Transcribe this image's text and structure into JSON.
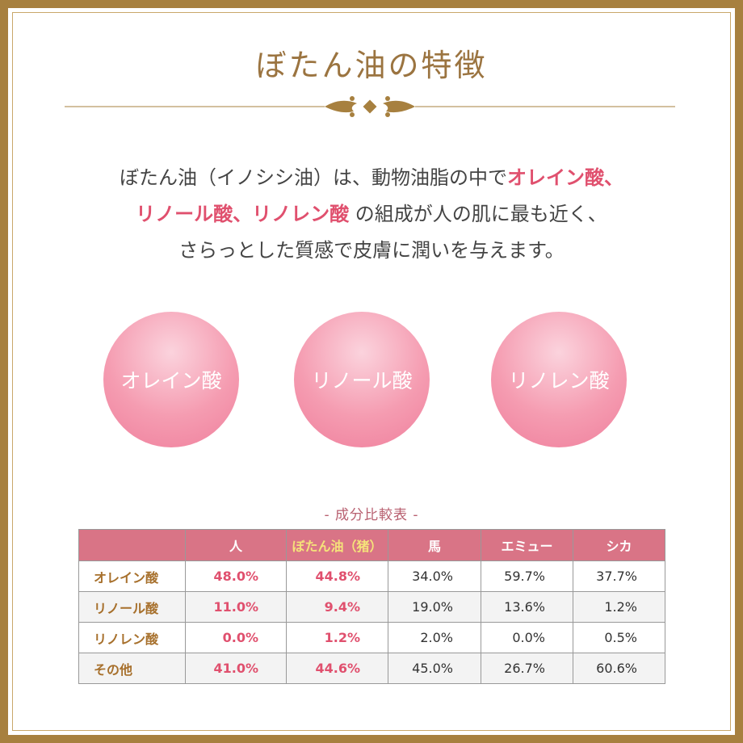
{
  "title": "ぼたん油の特徴",
  "intro": {
    "lines": [
      [
        {
          "text": "ぼたん油（イノシシ油）は、動物油脂の中で",
          "color": "#444444"
        },
        {
          "text": "オレイン酸、",
          "color": "#e0506e"
        }
      ],
      [
        {
          "text": "リノール酸、リノレン酸",
          "color": "#e0506e"
        },
        {
          "text": " の組成が人の肌に最も近く、",
          "color": "#444444"
        }
      ],
      [
        {
          "text": "さらっとした質感で皮膚に潤いを与えます。",
          "color": "#444444"
        }
      ]
    ]
  },
  "badges": [
    "オレイン酸",
    "リノール酸",
    "リノレン酸"
  ],
  "table": {
    "caption": "- 成分比較表 -",
    "header": [
      "人",
      "ぼたん油（猪）",
      "馬",
      "エミュー",
      "シカ"
    ],
    "rows": [
      {
        "label": "オレイン酸",
        "cells": [
          "48.0%",
          "44.8%",
          "34.0%",
          "59.7%",
          "37.7%"
        ]
      },
      {
        "label": "リノール酸",
        "cells": [
          "11.0%",
          "9.4%",
          "19.0%",
          "13.6%",
          "1.2%"
        ]
      },
      {
        "label": "リノレン酸",
        "cells": [
          "0.0%",
          "1.2%",
          "2.0%",
          "0.0%",
          "0.5%"
        ]
      },
      {
        "label": "その他",
        "cells": [
          "41.0%",
          "44.6%",
          "45.0%",
          "26.7%",
          "60.6%"
        ]
      }
    ]
  }
}
